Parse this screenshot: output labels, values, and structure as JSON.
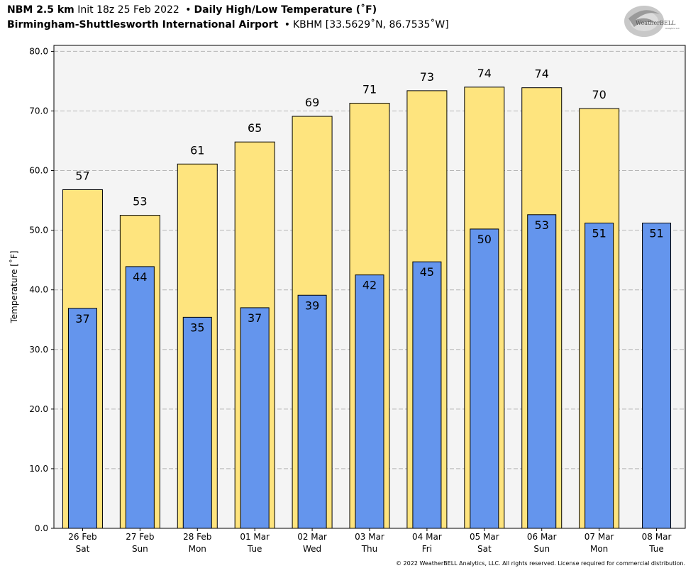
{
  "header": {
    "model": "NBM 2.5 km",
    "init": "Init 18z 25 Feb 2022",
    "bullet": "•",
    "title": "Daily High/Low Temperature (˚F)",
    "station_name": "Birmingham-Shuttlesworth International Airport",
    "station_info": "KBHM [33.5629˚N, 86.7535˚W]"
  },
  "logo": {
    "icon": "weatherbell-logo",
    "text": "WeatherBELL",
    "subtext": "Analytics LLC"
  },
  "footer": {
    "copyright": "© 2022 WeatherBELL Analytics, LLC. All rights reserved. License required for commercial distribution."
  },
  "colors": {
    "high_fill": "#fee47e",
    "low_fill": "#6495ed",
    "plot_bg": "#f4f4f4",
    "grid": "#b5b5b5"
  },
  "chart_data": {
    "type": "bar",
    "ylabel": "Temperature [˚F]",
    "ylim": [
      0,
      81
    ],
    "yticks": [
      "0.0",
      "10.0",
      "20.0",
      "30.0",
      "40.0",
      "50.0",
      "60.0",
      "70.0",
      "80.0"
    ],
    "grid": true,
    "categories": [
      [
        "26 Feb",
        "Sat"
      ],
      [
        "27 Feb",
        "Sun"
      ],
      [
        "28 Feb",
        "Mon"
      ],
      [
        "01 Mar",
        "Tue"
      ],
      [
        "02 Mar",
        "Wed"
      ],
      [
        "03 Mar",
        "Thu"
      ],
      [
        "04 Mar",
        "Fri"
      ],
      [
        "05 Mar",
        "Sat"
      ],
      [
        "06 Mar",
        "Sun"
      ],
      [
        "07 Mar",
        "Mon"
      ],
      [
        "08 Mar",
        "Tue"
      ]
    ],
    "series": [
      {
        "values": [
          56.8,
          52.5,
          61.1,
          64.8,
          69.1,
          71.3,
          73.4,
          74.0,
          73.9,
          70.4,
          null
        ],
        "labels": [
          "57",
          "53",
          "61",
          "65",
          "69",
          "71",
          "73",
          "74",
          "74",
          "70",
          null
        ]
      },
      {
        "values": [
          36.9,
          43.9,
          35.4,
          37.0,
          39.1,
          42.5,
          44.7,
          50.2,
          52.6,
          51.2,
          51.2
        ],
        "labels": [
          "37",
          "44",
          "35",
          "37",
          "39",
          "42",
          "45",
          "50",
          "53",
          "51",
          "51"
        ]
      }
    ]
  }
}
